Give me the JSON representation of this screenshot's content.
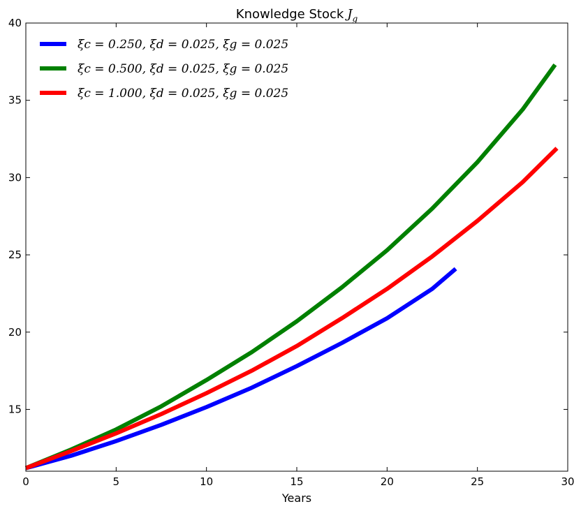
{
  "chart_data": {
    "type": "line",
    "title": "Knowledge Stock",
    "title_math": "J",
    "title_math_sub": "g",
    "xlabel": "Years",
    "ylabel": "",
    "xlim": [
      0,
      30
    ],
    "ylim": [
      11,
      40
    ],
    "xticks": [
      0,
      5,
      10,
      15,
      20,
      25,
      30
    ],
    "yticks": [
      15,
      20,
      25,
      30,
      35,
      40
    ],
    "grid": false,
    "legend_position": "upper-left",
    "series": [
      {
        "name": "ξc = 0.250, ξd = 0.025, ξg = 0.025",
        "color": "#0000ff",
        "x": [
          0,
          2.5,
          5,
          7.5,
          10,
          12.5,
          15,
          17.5,
          20,
          22.5,
          23.8
        ],
        "y": [
          11.2,
          12.0,
          12.95,
          14.0,
          15.15,
          16.4,
          17.8,
          19.3,
          20.9,
          22.8,
          24.1
        ]
      },
      {
        "name": "ξc = 0.500, ξd = 0.025, ξg = 0.025",
        "color": "#008000",
        "x": [
          0,
          2.5,
          5,
          7.5,
          10,
          12.5,
          15,
          17.5,
          20,
          22.5,
          25,
          27.5,
          29.3
        ],
        "y": [
          11.2,
          12.4,
          13.7,
          15.2,
          16.9,
          18.7,
          20.7,
          22.9,
          25.3,
          28.0,
          31.0,
          34.4,
          37.3
        ]
      },
      {
        "name": "ξc = 1.000, ξd = 0.025, ξg = 0.025",
        "color": "#ff0000",
        "x": [
          0,
          2.5,
          5,
          7.5,
          10,
          12.5,
          15,
          17.5,
          20,
          22.5,
          25,
          27.5,
          29.4
        ],
        "y": [
          11.2,
          12.3,
          13.45,
          14.7,
          16.05,
          17.5,
          19.1,
          20.9,
          22.8,
          24.9,
          27.2,
          29.7,
          31.9
        ]
      }
    ]
  }
}
